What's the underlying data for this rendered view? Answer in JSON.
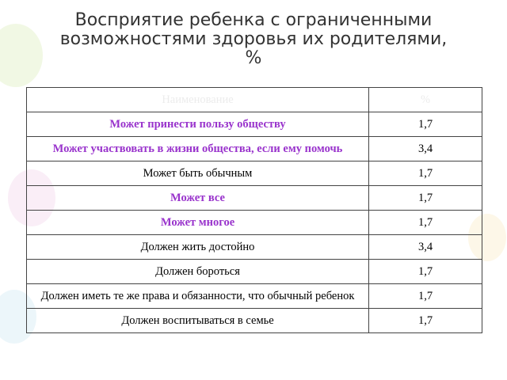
{
  "header": {
    "title_lines": [
      "Восприятие ребенка с ограниченными",
      "возможностями здоровья их родителями,",
      "%"
    ]
  },
  "table": {
    "columns": [
      "Наименование",
      "%"
    ],
    "rows": [
      [
        "Может принести пользу обществу",
        "1,7"
      ],
      [
        "Может участвовать в жизни общества, если ему помочь",
        "3,4"
      ],
      [
        "Может быть обычным",
        "1,7"
      ],
      [
        "Может все",
        "1,7"
      ],
      [
        "Может многое",
        "1,7"
      ],
      [
        "Должен жить достойно",
        "3,4"
      ],
      [
        "Должен бороться",
        "1,7"
      ],
      [
        "Должен иметь те же права и обязанности, что обычный ребенок",
        "1,7"
      ],
      [
        "Должен воспитываться в семье",
        "1,7"
      ]
    ]
  }
}
